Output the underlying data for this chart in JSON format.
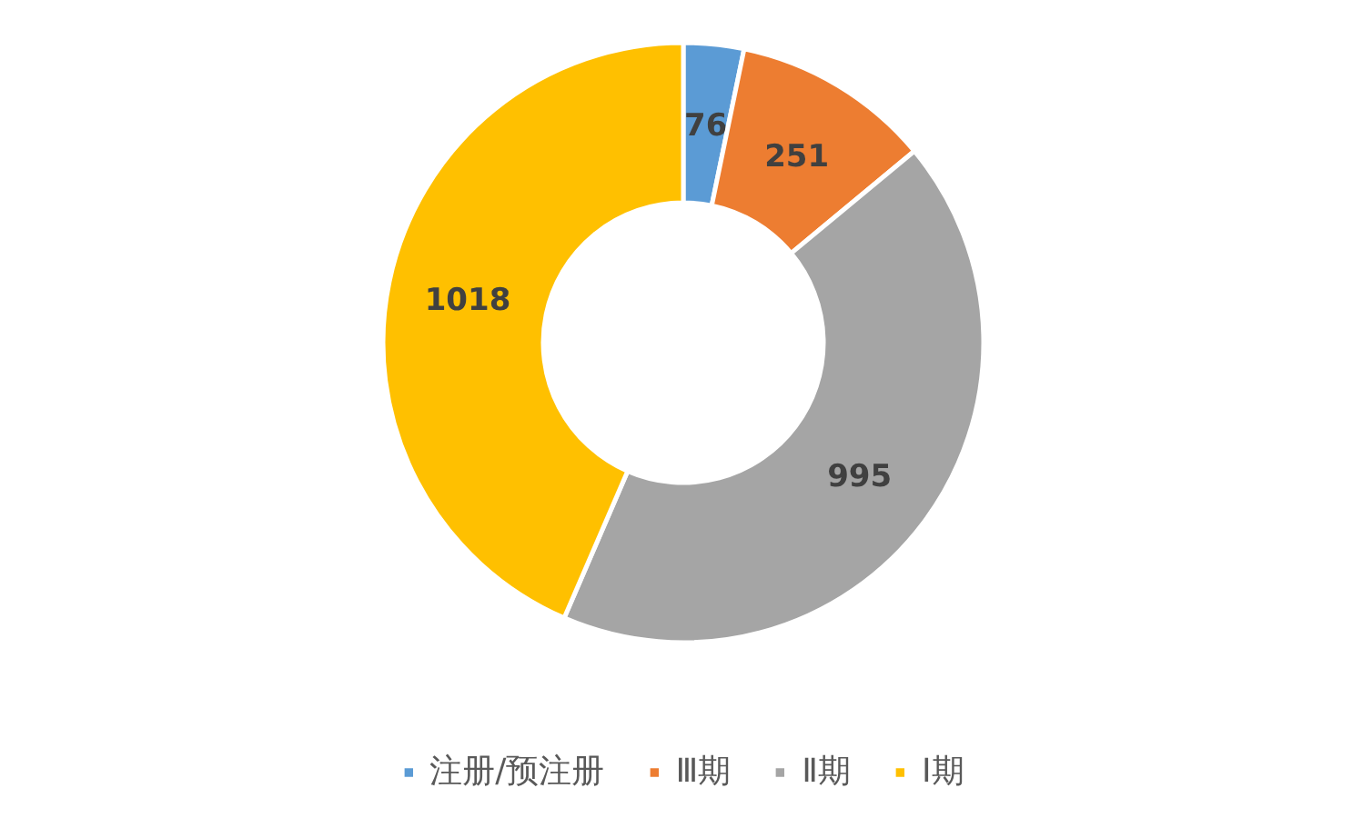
{
  "chart_data": {
    "type": "donut",
    "categories": [
      "注册/预注册",
      "Ⅲ期",
      "Ⅱ期",
      "Ⅰ期"
    ],
    "values": [
      76,
      251,
      995,
      1018
    ],
    "colors": [
      "#5b9bd5",
      "#ed7d31",
      "#a5a5a5",
      "#ffc000"
    ],
    "data_labels": true,
    "legend": "bottom"
  }
}
